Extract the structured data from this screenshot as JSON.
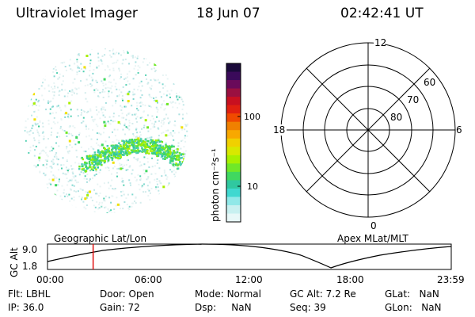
{
  "header": {
    "title": "Ultraviolet Imager",
    "date": "18 Jun 07",
    "time": "02:42:41 UT"
  },
  "colorbar": {
    "unit_label": "photon cm⁻²s⁻¹",
    "ticks": [
      "100",
      "10"
    ],
    "colors_top_to_bottom": [
      "#1a0a3a",
      "#3a0a5a",
      "#6a0a5a",
      "#9a1040",
      "#c81020",
      "#e02010",
      "#f04a00",
      "#f08000",
      "#f8a800",
      "#f0d000",
      "#d8e800",
      "#a8f000",
      "#70e828",
      "#40d860",
      "#30c8a0",
      "#40d8d0",
      "#90e8e8",
      "#c8f0f0",
      "#e8f8f8"
    ]
  },
  "polar_grid": {
    "labels": {
      "top": "12",
      "left": "18",
      "right": "6",
      "bottom": "0"
    },
    "latitude_labels": [
      "60",
      "70",
      "80"
    ]
  },
  "altitude_plot": {
    "y_axis_label": "GC Alt",
    "y_ticks": [
      "9.0",
      "1.8"
    ],
    "left_title": "Geographic Lat/Lon",
    "right_title": "Apex MLat/MLT",
    "x_ticks": [
      "00:00",
      "06:00",
      "12:00",
      "18:00",
      "23:59"
    ],
    "current_time_fraction": 0.113,
    "marker_color": "#e00000"
  },
  "status": {
    "row1": [
      {
        "key": "Flt:",
        "value": "LBHL"
      },
      {
        "key": "Door:",
        "value": "Open"
      },
      {
        "key": "Mode:",
        "value": "Normal"
      },
      {
        "key": "GC Alt:",
        "value": "7.2 Re"
      },
      {
        "key": "GLat:",
        "value": "NaN"
      }
    ],
    "row2": [
      {
        "key": "IP:",
        "value": "36.0"
      },
      {
        "key": "Gain:",
        "value": "72"
      },
      {
        "key": "Dsp:",
        "value": "NaN"
      },
      {
        "key": "Seq:",
        "value": "39"
      },
      {
        "key": "GLon:",
        "value": "NaN"
      }
    ]
  }
}
